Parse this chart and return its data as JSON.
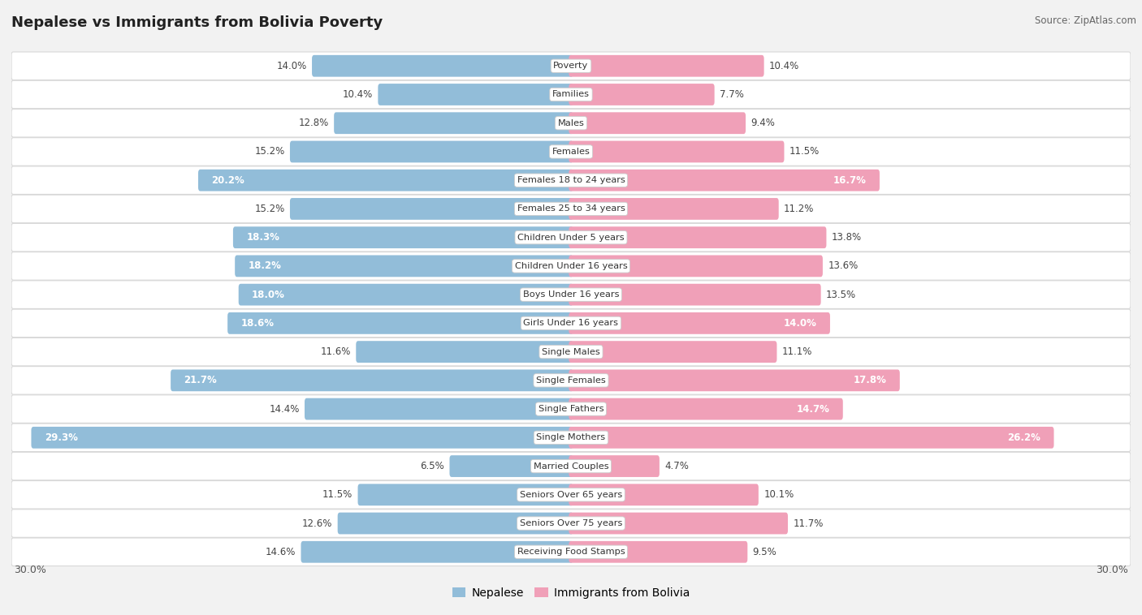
{
  "title": "Nepalese vs Immigrants from Bolivia Poverty",
  "source": "Source: ZipAtlas.com",
  "categories": [
    "Poverty",
    "Families",
    "Males",
    "Females",
    "Females 18 to 24 years",
    "Females 25 to 34 years",
    "Children Under 5 years",
    "Children Under 16 years",
    "Boys Under 16 years",
    "Girls Under 16 years",
    "Single Males",
    "Single Females",
    "Single Fathers",
    "Single Mothers",
    "Married Couples",
    "Seniors Over 65 years",
    "Seniors Over 75 years",
    "Receiving Food Stamps"
  ],
  "nepalese": [
    14.0,
    10.4,
    12.8,
    15.2,
    20.2,
    15.2,
    18.3,
    18.2,
    18.0,
    18.6,
    11.6,
    21.7,
    14.4,
    29.3,
    6.5,
    11.5,
    12.6,
    14.6
  ],
  "bolivia": [
    10.4,
    7.7,
    9.4,
    11.5,
    16.7,
    11.2,
    13.8,
    13.6,
    13.5,
    14.0,
    11.1,
    17.8,
    14.7,
    26.2,
    4.7,
    10.1,
    11.7,
    9.5
  ],
  "nepalese_color": "#92BDD9",
  "bolivia_color": "#F0A0B8",
  "axis_limit": 30.0,
  "bg_color": "#f2f2f2",
  "row_bg_color": "#ffffff",
  "inside_label_threshold_nep": 16.0,
  "inside_label_threshold_bol": 14.0
}
